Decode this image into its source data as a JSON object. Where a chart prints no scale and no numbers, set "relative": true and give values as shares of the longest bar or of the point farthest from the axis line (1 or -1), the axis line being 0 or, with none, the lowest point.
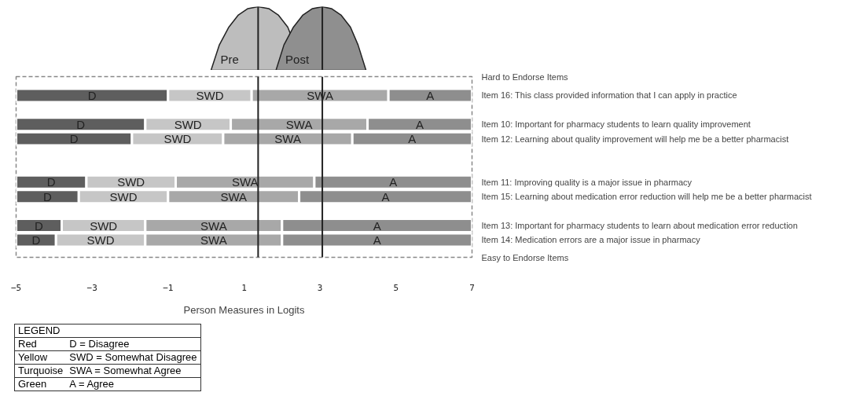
{
  "chart_data": [
    {
      "type": "area",
      "relative": true,
      "xlim": [
        -5,
        7
      ],
      "tick_labels": false,
      "grid": false,
      "series": [
        {
          "name": "Pre",
          "color": "#bdbdbd",
          "x": [
            0.13,
            0.35,
            0.6,
            0.85,
            1.1,
            1.37,
            1.65,
            1.9,
            2.15,
            2.4,
            2.6
          ],
          "values": [
            0,
            0.4,
            0.68,
            0.87,
            0.97,
            1,
            0.97,
            0.87,
            0.68,
            null,
            0
          ]
        },
        {
          "name": "Post",
          "color": "#8f8f8f",
          "x": [
            1.84,
            2.05,
            2.3,
            2.55,
            2.8,
            3.06,
            3.3,
            3.55,
            3.8,
            4.0,
            4.21
          ],
          "values": [
            0,
            0.4,
            0.68,
            0.87,
            0.97,
            1,
            0.97,
            0.87,
            0.68,
            0.4,
            0
          ]
        }
      ],
      "ref_lines": [
        {
          "axis": "x",
          "value": 1.37
        },
        {
          "axis": "x",
          "value": 3.06
        }
      ]
    },
    {
      "type": "bar",
      "orientation": "horizontal",
      "grid": false,
      "categories": [
        "Item 16: This class provided information that I can apply in practice",
        null,
        "Item 10: Important for pharmacy students to learn quality improvement",
        "Item 12: Learning about quality improvement will help me be a better pharmacist",
        null,
        null,
        "Item 11: Improving quality is a major issue in pharmacy",
        "Item 15: Learning about medication error reduction will help me be a better pharmacist",
        null,
        "Item 13: Important for pharmacy students to learn about medication error reduction",
        "Item 14: Medication errors are a major issue in pharmacy"
      ],
      "series": [
        {
          "name": "D",
          "color": "#5e5e5e",
          "base": [
            -5,
            null,
            -5,
            -5,
            null,
            null,
            -5,
            -5,
            null,
            -5,
            -5
          ],
          "values": [
            4.0,
            null,
            3.4,
            3.05,
            null,
            null,
            1.85,
            1.65,
            null,
            1.2,
            1.05
          ]
        },
        {
          "name": "SWD",
          "color": "#c6c6c6",
          "base": [
            -1.0,
            null,
            -1.6,
            -1.95,
            null,
            null,
            -3.15,
            -3.35,
            null,
            -3.8,
            -3.95
          ],
          "values": [
            2.2,
            null,
            2.25,
            2.4,
            null,
            null,
            2.35,
            2.35,
            null,
            2.2,
            2.35
          ]
        },
        {
          "name": "SWA",
          "color": "#a8a8a8",
          "base": [
            1.2,
            null,
            0.65,
            0.45,
            null,
            null,
            -0.8,
            -1.0,
            null,
            -1.6,
            -1.6
          ],
          "values": [
            3.6,
            null,
            3.6,
            3.4,
            null,
            null,
            3.65,
            3.45,
            null,
            3.6,
            3.6
          ]
        },
        {
          "name": "A",
          "color": "#8e8e8e",
          "base": [
            4.8,
            null,
            4.25,
            3.85,
            null,
            null,
            2.85,
            2.45,
            null,
            2.0,
            2.0
          ],
          "values": [
            2.2,
            null,
            2.75,
            3.15,
            null,
            null,
            4.15,
            4.55,
            null,
            5.0,
            5.0
          ]
        }
      ],
      "xlim": [
        -5,
        7
      ],
      "xticks": [
        -5,
        -3,
        -1,
        1,
        3,
        5,
        7
      ],
      "xlabel": "Person Measures in Logits",
      "ref_lines": [
        {
          "axis": "x",
          "value": 1.37
        },
        {
          "axis": "x",
          "value": 3.06
        }
      ],
      "legend_title": "LEGEND",
      "annotations": [
        "Hard to Endorse Items",
        "Easy to Endorse Items",
        "Red",
        "D = Disagree",
        "Yellow",
        "SWD = Somewhat Disagree",
        "Turquoise",
        "SWA = Somewhat Agree",
        "Green",
        "A = Agree"
      ]
    }
  ]
}
